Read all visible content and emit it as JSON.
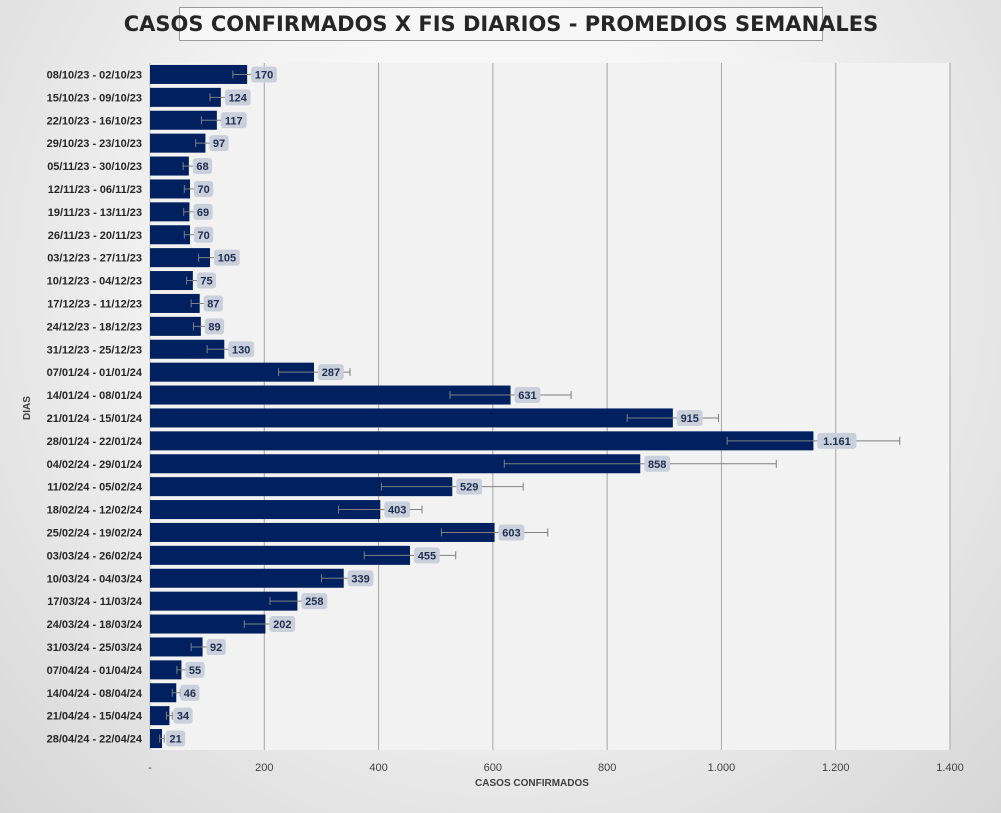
{
  "chart_data": {
    "type": "bar",
    "orientation": "horizontal",
    "title": "CASOS CONFIRMADOS X FIS DIARIOS - PROMEDIOS SEMANALES",
    "xlabel": "CASOS CONFIRMADOS",
    "ylabel": "DIAS",
    "xlim": [
      0,
      1400
    ],
    "xticks": [
      "-",
      "200",
      "400",
      "600",
      "800",
      "1.000",
      "1.200",
      "1.400"
    ],
    "xtick_values": [
      0,
      200,
      400,
      600,
      800,
      1000,
      1200,
      1400
    ],
    "grid": "vertical",
    "bar_color": "#002060",
    "label_bg": "#c9d0db",
    "categories": [
      "08/10/23 - 02/10/23",
      "15/10/23 - 09/10/23",
      "22/10/23 - 16/10/23",
      "29/10/23 - 23/10/23",
      "05/11/23 - 30/10/23",
      "12/11/23 - 06/11/23",
      "19/11/23 - 13/11/23",
      "26/11/23 - 20/11/23",
      "03/12/23 - 27/11/23",
      "10/12/23 - 04/12/23",
      "17/12/23 - 11/12/23",
      "24/12/23 - 18/12/23",
      "31/12/23 - 25/12/23",
      "07/01/24 - 01/01/24",
      "14/01/24 - 08/01/24",
      "21/01/24 - 15/01/24",
      "28/01/24 - 22/01/24",
      "04/02/24 - 29/01/24",
      "11/02/24 - 05/02/24",
      "18/02/24 - 12/02/24",
      "25/02/24 - 19/02/24",
      "03/03/24 - 26/02/24",
      "10/03/24 - 04/03/24",
      "17/03/24 - 11/03/24",
      "24/03/24 - 18/03/24",
      "31/03/24 - 25/03/24",
      "07/04/24 - 01/04/24",
      "14/04/24 - 08/04/24",
      "21/04/24 - 15/04/24",
      "28/04/24 - 22/04/24"
    ],
    "values": [
      170,
      124,
      117,
      97,
      68,
      70,
      69,
      70,
      105,
      75,
      87,
      89,
      130,
      287,
      631,
      915,
      1161,
      858,
      529,
      403,
      603,
      455,
      339,
      258,
      202,
      92,
      55,
      46,
      34,
      21
    ],
    "value_labels": [
      "170",
      "124",
      "117",
      "97",
      "68",
      "70",
      "69",
      "70",
      "105",
      "75",
      "87",
      "89",
      "130",
      "287",
      "631",
      "915",
      "1.161",
      "858",
      "529",
      "403",
      "603",
      "455",
      "339",
      "258",
      "202",
      "92",
      "55",
      "46",
      "34",
      "21"
    ],
    "error_bars": [
      [
        145,
        195
      ],
      [
        105,
        143
      ],
      [
        90,
        145
      ],
      [
        80,
        114
      ],
      [
        58,
        78
      ],
      [
        60,
        80
      ],
      [
        59,
        79
      ],
      [
        60,
        80
      ],
      [
        85,
        125
      ],
      [
        64,
        86
      ],
      [
        72,
        102
      ],
      [
        76,
        102
      ],
      [
        100,
        160
      ],
      [
        225,
        350
      ],
      [
        525,
        737
      ],
      [
        835,
        995
      ],
      [
        1010,
        1312
      ],
      [
        620,
        1096
      ],
      [
        405,
        653
      ],
      [
        330,
        476
      ],
      [
        510,
        696
      ],
      [
        375,
        535
      ],
      [
        300,
        378
      ],
      [
        210,
        306
      ],
      [
        165,
        240
      ],
      [
        72,
        112
      ],
      [
        47,
        63
      ],
      [
        39,
        53
      ],
      [
        29,
        39
      ],
      [
        17,
        25
      ]
    ]
  }
}
